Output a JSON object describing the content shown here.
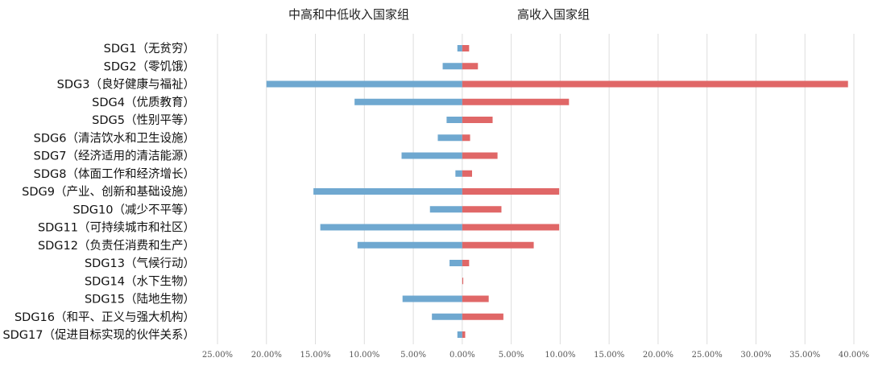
{
  "chart_data": {
    "type": "bar",
    "orientation": "horizontal-diverging",
    "group_labels": {
      "left": "中高和中低收入国家组",
      "right": "高收入国家组"
    },
    "categories": [
      "SDG1（无贫穷）",
      "SDG2（零饥饿）",
      "SDG3（良好健康与福祉）",
      "SDG4（优质教育）",
      "SDG5（性别平等）",
      "SDG6（清洁饮水和卫生设施）",
      "SDG7（经济适用的清洁能源）",
      "SDG8（体面工作和经济增长）",
      "SDG9（产业、创新和基础设施）",
      "SDG10（减少不平等）",
      "SDG11（可持续城市和社区）",
      "SDG12（负责任消费和生产）",
      "SDG13（气候行动）",
      "SDG14（水下生物）",
      "SDG15（陆地生物）",
      "SDG16（和平、正义与强大机构）",
      "SDG17（促进目标实现的伙伴关系）"
    ],
    "series": [
      {
        "name": "中高和中低收入国家组",
        "side": "left",
        "color": "#6fa8d0",
        "values": [
          0.5,
          2.0,
          20.0,
          11.0,
          1.6,
          2.5,
          6.2,
          0.7,
          15.2,
          3.3,
          14.5,
          10.7,
          1.3,
          0.0,
          6.1,
          3.1,
          0.5
        ]
      },
      {
        "name": "高收入国家组",
        "side": "right",
        "color": "#e06767",
        "values": [
          0.7,
          1.6,
          39.4,
          10.9,
          3.1,
          0.8,
          3.6,
          1.0,
          9.9,
          4.0,
          9.9,
          7.3,
          0.7,
          0.1,
          2.7,
          4.2,
          0.3
        ]
      }
    ],
    "xlim": [
      -25,
      40
    ],
    "xticks": [
      -25,
      -20,
      -15,
      -10,
      -5,
      0,
      5,
      10,
      15,
      20,
      25,
      30,
      35,
      40
    ],
    "xtick_labels": [
      "25.00%",
      "20.00%",
      "15.00%",
      "10.00%",
      "5.00%",
      "0.00%",
      "5.00%",
      "10.00%",
      "15.00%",
      "20.00%",
      "25.00%",
      "30.00%",
      "35.00%",
      "40.00%"
    ],
    "grid": "vertical",
    "legend": "none"
  }
}
